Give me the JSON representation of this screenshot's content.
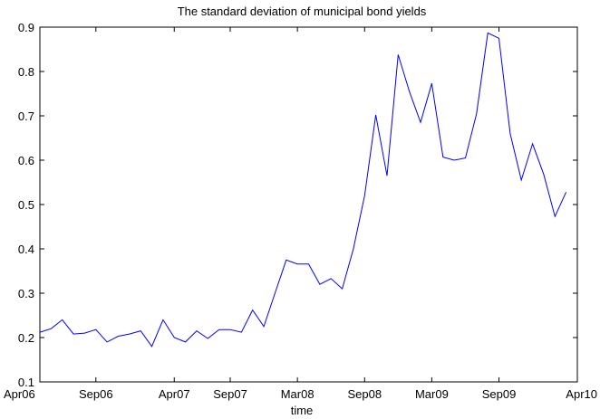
{
  "chart_data": {
    "type": "line",
    "title": "The standard deviation of municipal bond yields",
    "xlabel": "time",
    "ylabel": "",
    "ylim": [
      0.1,
      0.9
    ],
    "yticks": [
      0.1,
      0.2,
      0.3,
      0.4,
      0.5,
      0.6,
      0.7,
      0.8,
      0.9
    ],
    "ytick_labels": [
      "0.1",
      "0.2",
      "0.3",
      "0.4",
      "0.5",
      "0.6",
      "0.7",
      "0.8",
      "0.9"
    ],
    "xlim": [
      "2006-04",
      "2010-04"
    ],
    "xticks": [
      "2006-04",
      "2006-09",
      "2007-04",
      "2007-09",
      "2008-03",
      "2008-09",
      "2009-03",
      "2009-09",
      "2010-04"
    ],
    "xtick_labels": [
      "Apr06",
      "Sep06",
      "Apr07",
      "Sep07",
      "Mar08",
      "Sep08",
      "Mar09",
      "Sep09",
      "Apr10"
    ],
    "grid": false,
    "line_color": "#0000ff",
    "series": [
      {
        "x": [
          "2006-04",
          "2006-05",
          "2006-06",
          "2006-07",
          "2006-08",
          "2006-09",
          "2006-10",
          "2006-11",
          "2006-12",
          "2007-01",
          "2007-02",
          "2007-03",
          "2007-04",
          "2007-05",
          "2007-06",
          "2007-07",
          "2007-08",
          "2007-09",
          "2007-10",
          "2007-11",
          "2007-12",
          "2008-01",
          "2008-02",
          "2008-03",
          "2008-04",
          "2008-05",
          "2008-06",
          "2008-07",
          "2008-08",
          "2008-09",
          "2008-10",
          "2008-11",
          "2008-12",
          "2009-01",
          "2009-02",
          "2009-03",
          "2009-04",
          "2009-05",
          "2009-06",
          "2009-07",
          "2009-08",
          "2009-09",
          "2009-10",
          "2009-11",
          "2009-12",
          "2010-01",
          "2010-02",
          "2010-03"
        ],
        "values": [
          0.212,
          0.22,
          0.24,
          0.208,
          0.21,
          0.218,
          0.19,
          0.203,
          0.208,
          0.215,
          0.18,
          0.24,
          0.2,
          0.19,
          0.215,
          0.198,
          0.218,
          0.218,
          0.212,
          0.262,
          0.225,
          0.3,
          0.375,
          0.366,
          0.366,
          0.32,
          0.333,
          0.31,
          0.4,
          0.52,
          0.702,
          0.565,
          0.838,
          0.755,
          0.685,
          0.773,
          0.607,
          0.6,
          0.605,
          0.705,
          0.887,
          0.875,
          0.66,
          0.555,
          0.637,
          0.568,
          0.473,
          0.528
        ]
      }
    ]
  }
}
